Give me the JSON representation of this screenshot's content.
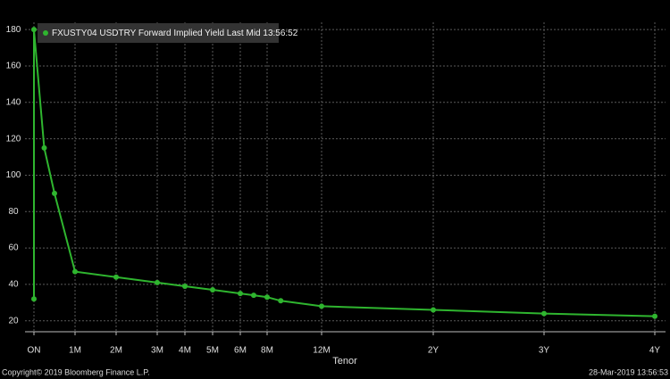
{
  "chart_data": {
    "type": "line",
    "legend_title": "FXUSTY04 USDTRY Forward Implied Yield Last Mid 13:56:52",
    "x_label": "Tenor",
    "footer_left": "Copyright© 2019 Bloomberg Finance L.P.",
    "footer_right": "28-Mar-2019 13:56:53",
    "x": [
      0,
      0,
      0.25,
      0.5,
      1,
      2,
      3,
      4,
      5,
      6,
      7,
      8,
      9,
      12,
      24,
      36,
      48
    ],
    "series": [
      {
        "name": "FXUSTY04 USDTRY Forward Implied Yield Last Mid 13:56:52",
        "color": "#2fb52f",
        "values": [
          32,
          180,
          115,
          90,
          47,
          44,
          41,
          39,
          37,
          35,
          34,
          33,
          31,
          28,
          26,
          24,
          22.5
        ]
      }
    ],
    "xlim": [
      0,
      48
    ],
    "xticks": [
      {
        "value": 0,
        "label": "ON"
      },
      {
        "value": 1,
        "label": "1M"
      },
      {
        "value": 2,
        "label": "2M"
      },
      {
        "value": 3,
        "label": "3M"
      },
      {
        "value": 4,
        "label": "4M"
      },
      {
        "value": 5,
        "label": "5M"
      },
      {
        "value": 6,
        "label": "6M"
      },
      {
        "value": 8,
        "label": "8M"
      },
      {
        "value": 12,
        "label": "12M"
      },
      {
        "value": 24,
        "label": "2Y"
      },
      {
        "value": 36,
        "label": "3Y"
      },
      {
        "value": 48,
        "label": "4Y"
      }
    ],
    "ylim": [
      14,
      184
    ],
    "yticks": [
      20,
      40,
      60,
      80,
      100,
      120,
      140,
      160,
      180
    ],
    "grid": true
  }
}
